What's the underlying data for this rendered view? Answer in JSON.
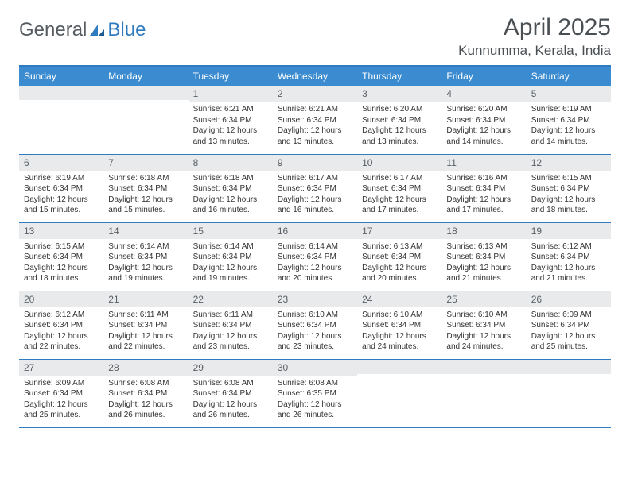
{
  "brand": {
    "part1": "General",
    "part2": "Blue"
  },
  "title": "April 2025",
  "location": "Kunnumma, Kerala, India",
  "colors": {
    "header_bg": "#3a8bd0",
    "header_text": "#ffffff",
    "day_num_bg": "#e8eaec",
    "border": "#2f7bbf",
    "text": "#333333",
    "title_text": "#4a4f54"
  },
  "fonts": {
    "title_size": 30,
    "location_size": 17,
    "weekday_size": 12,
    "daynum_size": 12,
    "body_size": 10
  },
  "weekdays": [
    "Sunday",
    "Monday",
    "Tuesday",
    "Wednesday",
    "Thursday",
    "Friday",
    "Saturday"
  ],
  "weeks": [
    [
      {
        "num": "",
        "lines": []
      },
      {
        "num": "",
        "lines": []
      },
      {
        "num": "1",
        "lines": [
          "Sunrise: 6:21 AM",
          "Sunset: 6:34 PM",
          "Daylight: 12 hours and 13 minutes."
        ]
      },
      {
        "num": "2",
        "lines": [
          "Sunrise: 6:21 AM",
          "Sunset: 6:34 PM",
          "Daylight: 12 hours and 13 minutes."
        ]
      },
      {
        "num": "3",
        "lines": [
          "Sunrise: 6:20 AM",
          "Sunset: 6:34 PM",
          "Daylight: 12 hours and 13 minutes."
        ]
      },
      {
        "num": "4",
        "lines": [
          "Sunrise: 6:20 AM",
          "Sunset: 6:34 PM",
          "Daylight: 12 hours and 14 minutes."
        ]
      },
      {
        "num": "5",
        "lines": [
          "Sunrise: 6:19 AM",
          "Sunset: 6:34 PM",
          "Daylight: 12 hours and 14 minutes."
        ]
      }
    ],
    [
      {
        "num": "6",
        "lines": [
          "Sunrise: 6:19 AM",
          "Sunset: 6:34 PM",
          "Daylight: 12 hours and 15 minutes."
        ]
      },
      {
        "num": "7",
        "lines": [
          "Sunrise: 6:18 AM",
          "Sunset: 6:34 PM",
          "Daylight: 12 hours and 15 minutes."
        ]
      },
      {
        "num": "8",
        "lines": [
          "Sunrise: 6:18 AM",
          "Sunset: 6:34 PM",
          "Daylight: 12 hours and 16 minutes."
        ]
      },
      {
        "num": "9",
        "lines": [
          "Sunrise: 6:17 AM",
          "Sunset: 6:34 PM",
          "Daylight: 12 hours and 16 minutes."
        ]
      },
      {
        "num": "10",
        "lines": [
          "Sunrise: 6:17 AM",
          "Sunset: 6:34 PM",
          "Daylight: 12 hours and 17 minutes."
        ]
      },
      {
        "num": "11",
        "lines": [
          "Sunrise: 6:16 AM",
          "Sunset: 6:34 PM",
          "Daylight: 12 hours and 17 minutes."
        ]
      },
      {
        "num": "12",
        "lines": [
          "Sunrise: 6:15 AM",
          "Sunset: 6:34 PM",
          "Daylight: 12 hours and 18 minutes."
        ]
      }
    ],
    [
      {
        "num": "13",
        "lines": [
          "Sunrise: 6:15 AM",
          "Sunset: 6:34 PM",
          "Daylight: 12 hours and 18 minutes."
        ]
      },
      {
        "num": "14",
        "lines": [
          "Sunrise: 6:14 AM",
          "Sunset: 6:34 PM",
          "Daylight: 12 hours and 19 minutes."
        ]
      },
      {
        "num": "15",
        "lines": [
          "Sunrise: 6:14 AM",
          "Sunset: 6:34 PM",
          "Daylight: 12 hours and 19 minutes."
        ]
      },
      {
        "num": "16",
        "lines": [
          "Sunrise: 6:14 AM",
          "Sunset: 6:34 PM",
          "Daylight: 12 hours and 20 minutes."
        ]
      },
      {
        "num": "17",
        "lines": [
          "Sunrise: 6:13 AM",
          "Sunset: 6:34 PM",
          "Daylight: 12 hours and 20 minutes."
        ]
      },
      {
        "num": "18",
        "lines": [
          "Sunrise: 6:13 AM",
          "Sunset: 6:34 PM",
          "Daylight: 12 hours and 21 minutes."
        ]
      },
      {
        "num": "19",
        "lines": [
          "Sunrise: 6:12 AM",
          "Sunset: 6:34 PM",
          "Daylight: 12 hours and 21 minutes."
        ]
      }
    ],
    [
      {
        "num": "20",
        "lines": [
          "Sunrise: 6:12 AM",
          "Sunset: 6:34 PM",
          "Daylight: 12 hours and 22 minutes."
        ]
      },
      {
        "num": "21",
        "lines": [
          "Sunrise: 6:11 AM",
          "Sunset: 6:34 PM",
          "Daylight: 12 hours and 22 minutes."
        ]
      },
      {
        "num": "22",
        "lines": [
          "Sunrise: 6:11 AM",
          "Sunset: 6:34 PM",
          "Daylight: 12 hours and 23 minutes."
        ]
      },
      {
        "num": "23",
        "lines": [
          "Sunrise: 6:10 AM",
          "Sunset: 6:34 PM",
          "Daylight: 12 hours and 23 minutes."
        ]
      },
      {
        "num": "24",
        "lines": [
          "Sunrise: 6:10 AM",
          "Sunset: 6:34 PM",
          "Daylight: 12 hours and 24 minutes."
        ]
      },
      {
        "num": "25",
        "lines": [
          "Sunrise: 6:10 AM",
          "Sunset: 6:34 PM",
          "Daylight: 12 hours and 24 minutes."
        ]
      },
      {
        "num": "26",
        "lines": [
          "Sunrise: 6:09 AM",
          "Sunset: 6:34 PM",
          "Daylight: 12 hours and 25 minutes."
        ]
      }
    ],
    [
      {
        "num": "27",
        "lines": [
          "Sunrise: 6:09 AM",
          "Sunset: 6:34 PM",
          "Daylight: 12 hours and 25 minutes."
        ]
      },
      {
        "num": "28",
        "lines": [
          "Sunrise: 6:08 AM",
          "Sunset: 6:34 PM",
          "Daylight: 12 hours and 26 minutes."
        ]
      },
      {
        "num": "29",
        "lines": [
          "Sunrise: 6:08 AM",
          "Sunset: 6:34 PM",
          "Daylight: 12 hours and 26 minutes."
        ]
      },
      {
        "num": "30",
        "lines": [
          "Sunrise: 6:08 AM",
          "Sunset: 6:35 PM",
          "Daylight: 12 hours and 26 minutes."
        ]
      },
      {
        "num": "",
        "lines": []
      },
      {
        "num": "",
        "lines": []
      },
      {
        "num": "",
        "lines": []
      }
    ]
  ]
}
